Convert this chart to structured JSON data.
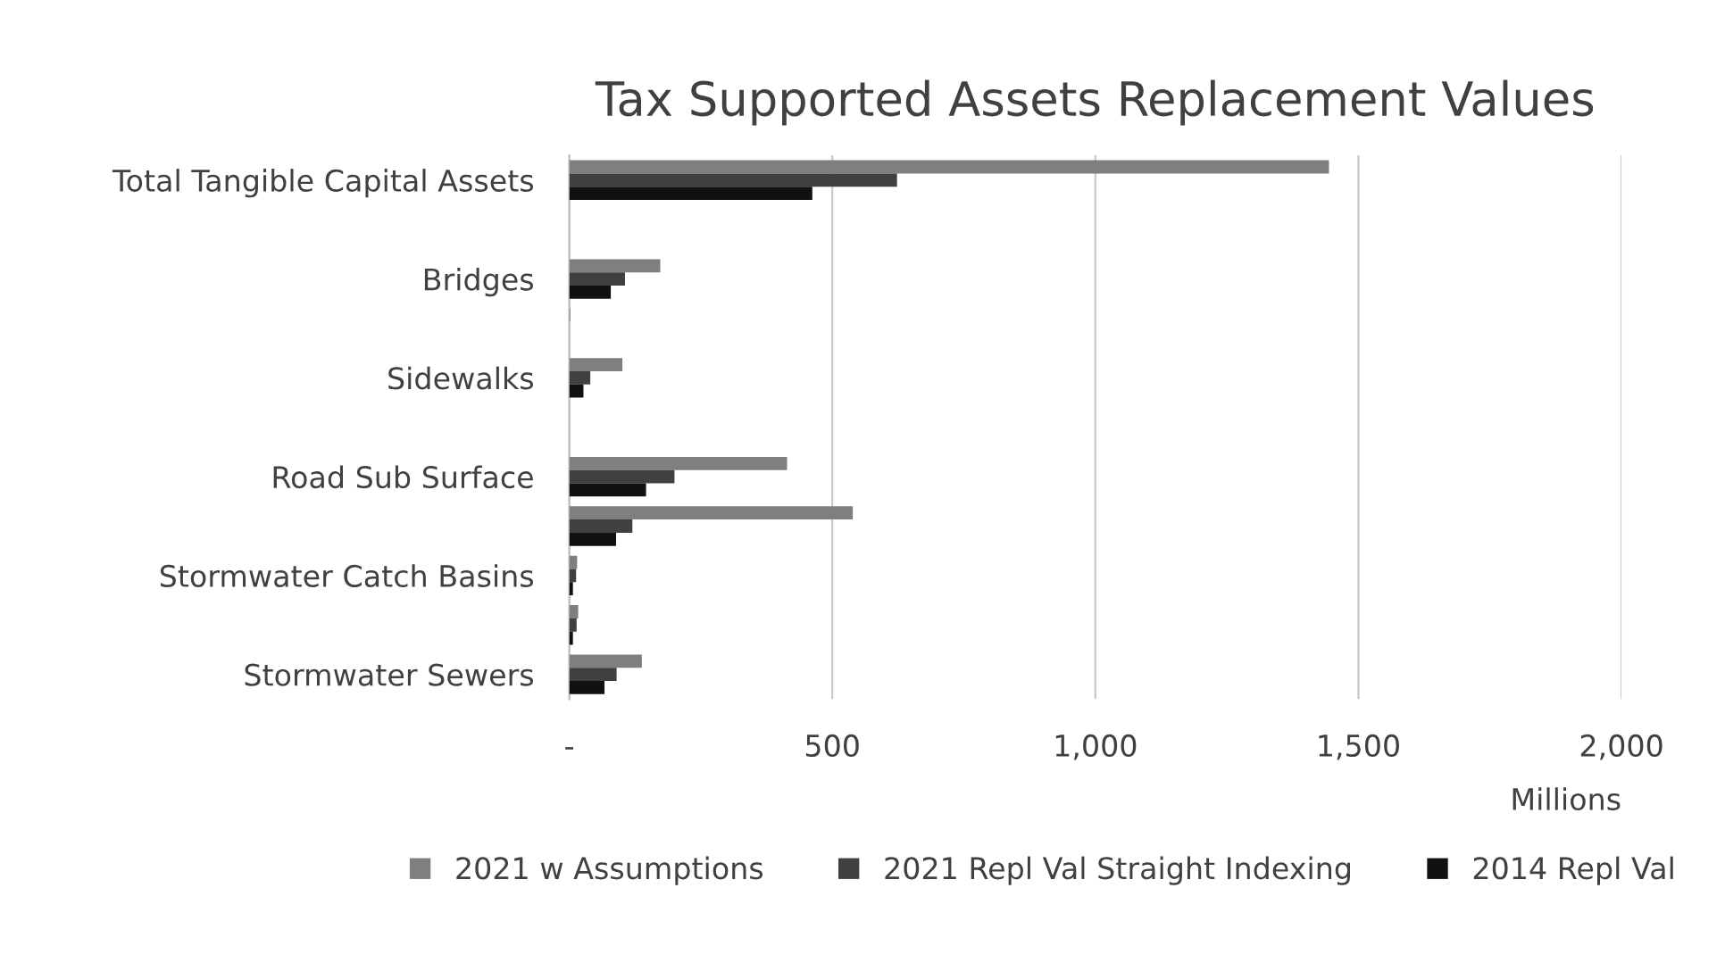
{
  "chart_data": {
    "type": "bar",
    "orientation": "horizontal",
    "title": "Tax Supported Assets Replacement Values",
    "xlabel": "Millions",
    "categories": [
      "Total Tangible Capital Assets",
      null,
      "Bridges",
      null,
      "Sidewalks",
      null,
      "Road Sub Surface",
      null,
      "Stormwater Catch Basins",
      null,
      "Stormwater Sewers"
    ],
    "series": [
      {
        "name": "2021 w Assumptions",
        "color": "#7f7f7f",
        "values": [
          1444,
          0,
          173,
          2,
          101,
          0,
          414,
          539,
          15,
          17,
          138
        ]
      },
      {
        "name": "2021 Repl Val Straight Indexing",
        "color": "#404040",
        "values": [
          623,
          0,
          106,
          0,
          40,
          0,
          200,
          120,
          13,
          14,
          90
        ]
      },
      {
        "name": "2014 Repl Val",
        "color": "#111111",
        "values": [
          462,
          0,
          79,
          0,
          27,
          0,
          146,
          89,
          7,
          7,
          67
        ]
      }
    ],
    "xlim": [
      0,
      2000
    ],
    "xticks": [
      {
        "value": 0,
        "label": "-"
      },
      {
        "value": 500,
        "label": "500"
      },
      {
        "value": 1000,
        "label": "1,000"
      },
      {
        "value": 1500,
        "label": "1,500"
      },
      {
        "value": 2000,
        "label": "2,000"
      }
    ],
    "grid": "x",
    "legend": "bottom"
  }
}
